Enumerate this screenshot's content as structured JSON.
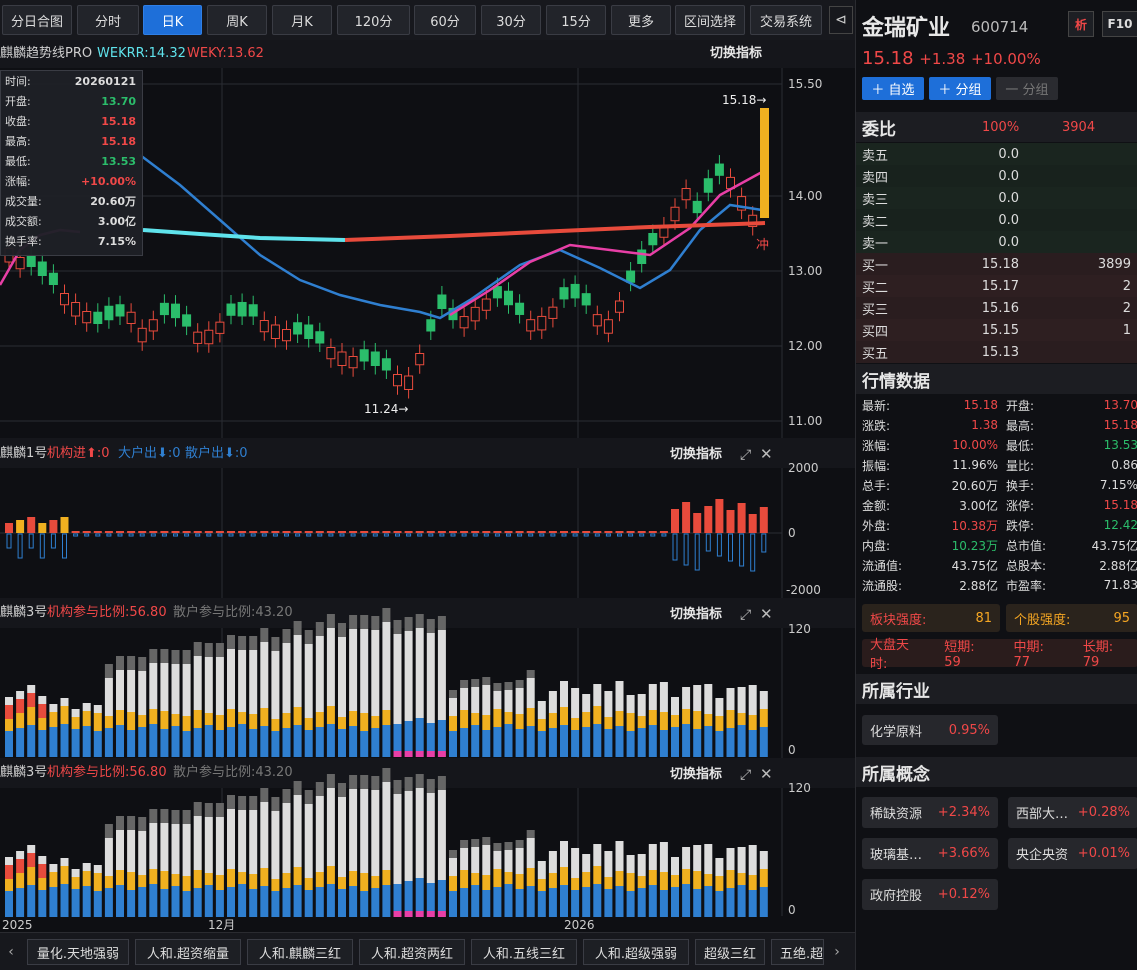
{
  "toolbar": {
    "tabs": [
      "分日合图",
      "分时",
      "日K",
      "周K",
      "月K",
      "120分",
      "60分",
      "30分",
      "15分",
      "更多",
      "区间选择",
      "交易系统"
    ],
    "active_index": 2,
    "sidebar_toggle": "⊲"
  },
  "main_chart": {
    "indicator_name": "麒麟趋势线PRO",
    "wekrr_label": "WEKRR:14.32",
    "weky_label": "WEKY:13.62",
    "switch_label": "切换指标",
    "y_ticks": [
      "15.50",
      "14.00",
      "13.00",
      "12.00",
      "11.00"
    ],
    "high_marker": "15.18→",
    "low_marker": "11.24→",
    "chong_label": "冲"
  },
  "tooltip": {
    "rows": [
      {
        "k": "时间:",
        "v": "20260121",
        "c": "white"
      },
      {
        "k": "开盘:",
        "v": "13.70",
        "c": "green"
      },
      {
        "k": "收盘:",
        "v": "15.18",
        "c": "red"
      },
      {
        "k": "最高:",
        "v": "15.18",
        "c": "red"
      },
      {
        "k": "最低:",
        "v": "13.53",
        "c": "green"
      },
      {
        "k": "涨幅:",
        "v": "+10.00%",
        "c": "red"
      },
      {
        "k": "成交量:",
        "v": "20.60万",
        "c": "white"
      },
      {
        "k": "成交额:",
        "v": "3.00亿",
        "c": "white"
      },
      {
        "k": "换手率:",
        "v": "7.15%",
        "c": "white"
      }
    ]
  },
  "panel1": {
    "name": "麒麟1号",
    "inst_in": "机构进⬆:0",
    "big_out": "大户出⬇:0",
    "retail_out": "散户出⬇:0",
    "switch_label": "切换指标",
    "y_ticks": [
      "2000",
      "0",
      "-2000"
    ]
  },
  "panel2": {
    "name": "麒麟3号",
    "inst_ratio": "机构参与比例:56.80",
    "retail_ratio": "散户参与比例:43.20",
    "switch_label": "切换指标",
    "y_ticks": [
      "120",
      "0"
    ]
  },
  "panel3": {
    "name": "麒麟3号",
    "inst_ratio": "机构参与比例:56.80",
    "retail_ratio": "散户参与比例:43.20",
    "switch_label": "切换指标",
    "y_ticks": [
      "120",
      "0"
    ]
  },
  "x_axis": {
    "labels": [
      "2025",
      "12月",
      "2026"
    ]
  },
  "bottom_tabs": [
    "量化.天地强弱",
    "人和.超资缩量",
    "人和.麒麟三红",
    "人和.超资两红",
    "人和.五线三红",
    "人和.超级强弱",
    "超级三红",
    "五绝.超"
  ],
  "stock": {
    "name": "金瑞矿业",
    "code": "600714",
    "analysis_btn": "析",
    "f10_btn": "F10",
    "price": "15.18",
    "change": "+1.38",
    "pct": "+10.00%",
    "btn_watch": "＋ 自选",
    "btn_group": "＋ 分组",
    "btn_ungroup": "一 分组"
  },
  "orderbook": {
    "title": "委比",
    "ratio": "100%",
    "diff": "3904",
    "rows": [
      {
        "l": "卖五",
        "p": "0.0",
        "v": ""
      },
      {
        "l": "卖四",
        "p": "0.0",
        "v": ""
      },
      {
        "l": "卖三",
        "p": "0.0",
        "v": ""
      },
      {
        "l": "卖二",
        "p": "0.0",
        "v": ""
      },
      {
        "l": "卖一",
        "p": "0.0",
        "v": ""
      },
      {
        "l": "买一",
        "p": "15.18",
        "v": "3899"
      },
      {
        "l": "买二",
        "p": "15.17",
        "v": "2"
      },
      {
        "l": "买三",
        "p": "15.16",
        "v": "2"
      },
      {
        "l": "买四",
        "p": "15.15",
        "v": "1"
      },
      {
        "l": "买五",
        "p": "15.13",
        "v": ""
      }
    ]
  },
  "market": {
    "title": "行情数据",
    "rows": [
      [
        {
          "k": "最新:",
          "v": "15.18",
          "c": "red"
        },
        {
          "k": "开盘:",
          "v": "13.70",
          "c": "red"
        }
      ],
      [
        {
          "k": "涨跌:",
          "v": "1.38",
          "c": "red"
        },
        {
          "k": "最高:",
          "v": "15.18",
          "c": "red"
        }
      ],
      [
        {
          "k": "涨幅:",
          "v": "10.00%",
          "c": "red"
        },
        {
          "k": "最低:",
          "v": "13.53",
          "c": "green"
        }
      ],
      [
        {
          "k": "振幅:",
          "v": "11.96%",
          "c": "white"
        },
        {
          "k": "量比:",
          "v": "0.86",
          "c": "white"
        }
      ],
      [
        {
          "k": "总手:",
          "v": "20.60万",
          "c": "white"
        },
        {
          "k": "换手:",
          "v": "7.15%",
          "c": "white"
        }
      ],
      [
        {
          "k": "金额:",
          "v": "3.00亿",
          "c": "white"
        },
        {
          "k": "涨停:",
          "v": "15.18",
          "c": "red"
        }
      ],
      [
        {
          "k": "外盘:",
          "v": "10.38万",
          "c": "red"
        },
        {
          "k": "跌停:",
          "v": "12.42",
          "c": "green"
        }
      ],
      [
        {
          "k": "内盘:",
          "v": "10.23万",
          "c": "green"
        },
        {
          "k": "总市值:",
          "v": "43.75亿",
          "c": "white"
        }
      ],
      [
        {
          "k": "流通值:",
          "v": "43.75亿",
          "c": "white"
        },
        {
          "k": "总股本:",
          "v": "2.88亿",
          "c": "white"
        }
      ],
      [
        {
          "k": "流通股:",
          "v": "2.88亿",
          "c": "white"
        },
        {
          "k": "市盈率:",
          "v": "71.83",
          "c": "white"
        }
      ]
    ]
  },
  "strength": {
    "sector_label": "板块强度:",
    "sector_value": "81",
    "stock_label": "个股强度:",
    "stock_value": "95",
    "market_label": "大盘天时:",
    "short_label": "短期: 59",
    "mid_label": "中期: 77",
    "long_label": "长期: 79"
  },
  "industry": {
    "title": "所属行业",
    "items": [
      {
        "name": "化学原料",
        "pct": "0.95%"
      }
    ]
  },
  "concept": {
    "title": "所属概念",
    "items": [
      {
        "name": "稀缺资源",
        "pct": "+2.34%"
      },
      {
        "name": "西部大…",
        "pct": "+0.28%"
      },
      {
        "name": "玻璃基…",
        "pct": "+3.66%"
      },
      {
        "name": "央企央资",
        "pct": "+0.01%"
      },
      {
        "name": "政府控股",
        "pct": "+0.12%"
      }
    ]
  }
}
